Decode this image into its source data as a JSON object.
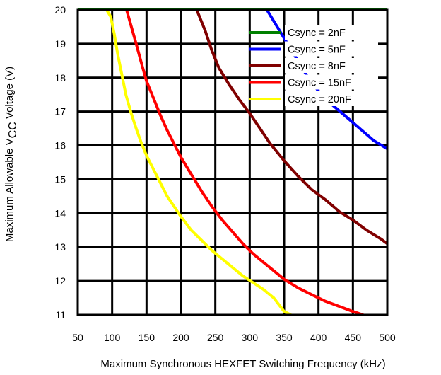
{
  "chart_data": {
    "type": "line",
    "title": "",
    "xlabel": "Maximum Synchronous HEXFET Switching Frequency (kHz)",
    "ylabel_prefix": "Maximum Allowable V",
    "ylabel_sub": "CC",
    "ylabel_suffix": " Voltage (V)",
    "xlim": [
      50,
      500
    ],
    "ylim": [
      11,
      20
    ],
    "xticks": [
      50,
      100,
      150,
      200,
      250,
      300,
      350,
      400,
      450,
      500
    ],
    "yticks": [
      11,
      12,
      13,
      14,
      15,
      16,
      17,
      18,
      19,
      20
    ],
    "grid": true,
    "legend_position": "top-right",
    "series": [
      {
        "name": "Csync = 2nF",
        "color": "#008000",
        "points": [
          [
            50,
            20
          ],
          [
            500,
            20
          ]
        ]
      },
      {
        "name": "Csync = 5nF",
        "color": "#0000ff",
        "points": [
          [
            325,
            20
          ],
          [
            340,
            19.5
          ],
          [
            355,
            19.0
          ],
          [
            370,
            18.5
          ],
          [
            385,
            18.0
          ],
          [
            400,
            17.6
          ],
          [
            420,
            17.2
          ],
          [
            440,
            16.85
          ],
          [
            460,
            16.5
          ],
          [
            480,
            16.15
          ],
          [
            500,
            15.9
          ]
        ]
      },
      {
        "name": "Csync = 8nF",
        "color": "#800000",
        "points": [
          [
            223,
            20
          ],
          [
            235,
            19.4
          ],
          [
            245,
            18.8
          ],
          [
            255,
            18.3
          ],
          [
            270,
            17.8
          ],
          [
            285,
            17.35
          ],
          [
            300,
            16.95
          ],
          [
            315,
            16.5
          ],
          [
            330,
            16.05
          ],
          [
            350,
            15.55
          ],
          [
            370,
            15.1
          ],
          [
            390,
            14.7
          ],
          [
            410,
            14.4
          ],
          [
            430,
            14.05
          ],
          [
            450,
            13.8
          ],
          [
            470,
            13.5
          ],
          [
            490,
            13.25
          ],
          [
            500,
            13.1
          ]
        ]
      },
      {
        "name": "Csync = 15nF",
        "color": "#ff0000",
        "points": [
          [
            121,
            20
          ],
          [
            128,
            19.5
          ],
          [
            135,
            19.0
          ],
          [
            143,
            18.4
          ],
          [
            150,
            17.9
          ],
          [
            160,
            17.4
          ],
          [
            170,
            16.9
          ],
          [
            180,
            16.45
          ],
          [
            190,
            16.05
          ],
          [
            200,
            15.65
          ],
          [
            215,
            15.15
          ],
          [
            230,
            14.65
          ],
          [
            245,
            14.2
          ],
          [
            260,
            13.8
          ],
          [
            275,
            13.45
          ],
          [
            290,
            13.1
          ],
          [
            305,
            12.8
          ],
          [
            320,
            12.55
          ],
          [
            335,
            12.3
          ],
          [
            350,
            12.05
          ],
          [
            370,
            11.8
          ],
          [
            390,
            11.6
          ],
          [
            410,
            11.4
          ],
          [
            430,
            11.25
          ],
          [
            450,
            11.1
          ],
          [
            465,
            11.0
          ]
        ]
      },
      {
        "name": "Csync = 20nF",
        "color": "#ffff00",
        "points": [
          [
            92,
            20
          ],
          [
            98,
            19.8
          ],
          [
            103,
            19.3
          ],
          [
            108,
            18.7
          ],
          [
            114,
            18.1
          ],
          [
            120,
            17.5
          ],
          [
            127,
            17.0
          ],
          [
            135,
            16.5
          ],
          [
            142,
            16.1
          ],
          [
            150,
            15.7
          ],
          [
            160,
            15.3
          ],
          [
            170,
            14.9
          ],
          [
            180,
            14.5
          ],
          [
            190,
            14.2
          ],
          [
            200,
            13.9
          ],
          [
            215,
            13.5
          ],
          [
            230,
            13.2
          ],
          [
            245,
            12.9
          ],
          [
            260,
            12.65
          ],
          [
            275,
            12.4
          ],
          [
            290,
            12.15
          ],
          [
            305,
            11.95
          ],
          [
            320,
            11.75
          ],
          [
            335,
            11.5
          ],
          [
            350,
            11.1
          ],
          [
            360,
            11.0
          ]
        ]
      }
    ]
  }
}
